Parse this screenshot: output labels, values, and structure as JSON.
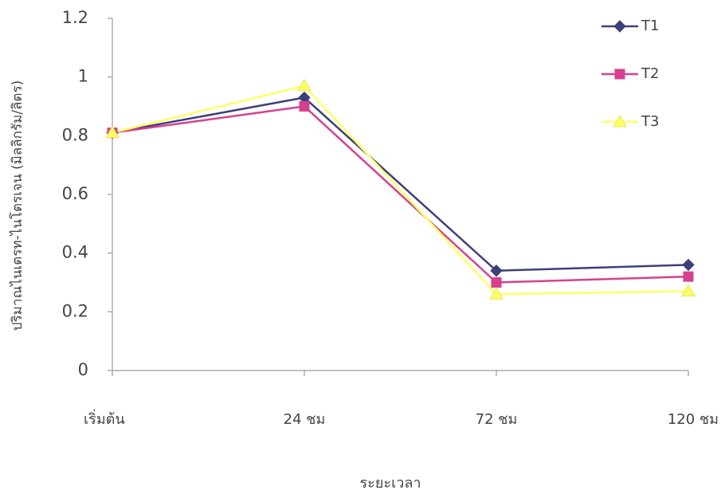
{
  "chart_data": {
    "type": "line",
    "y_label": "ปริมาณไนเตรท-ไนโตรเจน (มิลลิกรัม/ลิตร)",
    "x_label": "ระยะเวลา",
    "categories": [
      "เริ่มต้น",
      "24 ชม",
      "72 ชม",
      "120 ชม"
    ],
    "series": [
      {
        "name": "T1",
        "color": "#3d3f7a",
        "marker": "diamond",
        "values": [
          0.81,
          0.93,
          0.34,
          0.36
        ]
      },
      {
        "name": "T2",
        "color": "#d6408f",
        "marker": "square",
        "values": [
          0.81,
          0.9,
          0.3,
          0.32
        ]
      },
      {
        "name": "T3",
        "color": "#ffff66",
        "marker": "triangle",
        "values": [
          0.81,
          0.97,
          0.26,
          0.27
        ]
      }
    ],
    "ylim": [
      0,
      1.2
    ],
    "yticks": [
      0,
      0.2,
      0.4,
      0.6,
      0.8,
      1,
      1.2
    ],
    "grid": false,
    "legend": "top-right"
  }
}
